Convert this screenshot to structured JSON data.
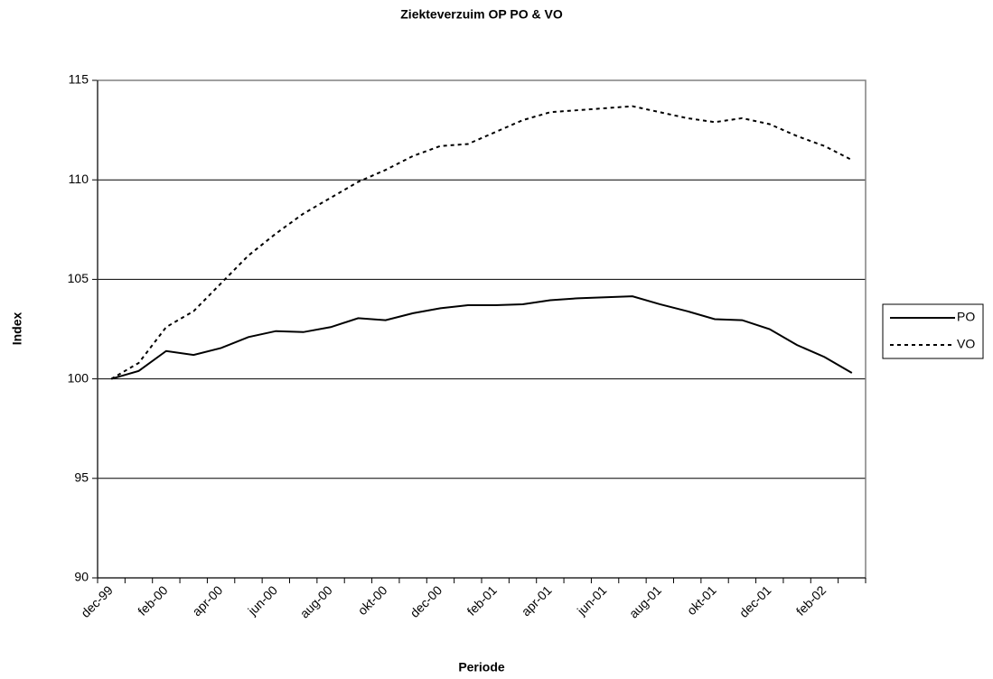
{
  "chart_data": {
    "type": "line",
    "title": "Ziekteverzuim OP PO & VO",
    "x_label": "Periode",
    "y_label": "Index",
    "categories": [
      "dec-99",
      null,
      "feb-00",
      null,
      "apr-00",
      null,
      "jun-00",
      null,
      "aug-00",
      null,
      "okt-00",
      null,
      "dec-00",
      null,
      "feb-01",
      null,
      "apr-01",
      null,
      "jun-01",
      null,
      "aug-01",
      null,
      "okt-01",
      null,
      "dec-01",
      null,
      "feb-02",
      null
    ],
    "series": [
      {
        "name": "PO",
        "color": "#000000",
        "line_style": "solid",
        "values": [
          100,
          100.4,
          101.4,
          101.2,
          101.55,
          102.1,
          102.4,
          102.35,
          102.6,
          103.05,
          102.95,
          103.3,
          103.55,
          103.7,
          103.7,
          103.75,
          103.95,
          104.05,
          104.1,
          104.15,
          103.75,
          103.4,
          103.0,
          102.95,
          102.5,
          101.7,
          101.1,
          100.3
        ]
      },
      {
        "name": "VO",
        "color": "#000000",
        "line_style": "dashed",
        "values": [
          100,
          100.8,
          102.6,
          103.4,
          104.8,
          106.2,
          107.3,
          108.3,
          109.1,
          109.9,
          110.5,
          111.2,
          111.7,
          111.8,
          112.4,
          113.0,
          113.4,
          113.5,
          113.6,
          113.7,
          113.4,
          113.1,
          112.9,
          113.1,
          112.8,
          112.2,
          111.7,
          111.0
        ]
      }
    ],
    "ylim": [
      90,
      115
    ],
    "yticks": [
      90,
      95,
      100,
      105,
      110,
      115
    ],
    "grid": true,
    "legend": "right"
  }
}
